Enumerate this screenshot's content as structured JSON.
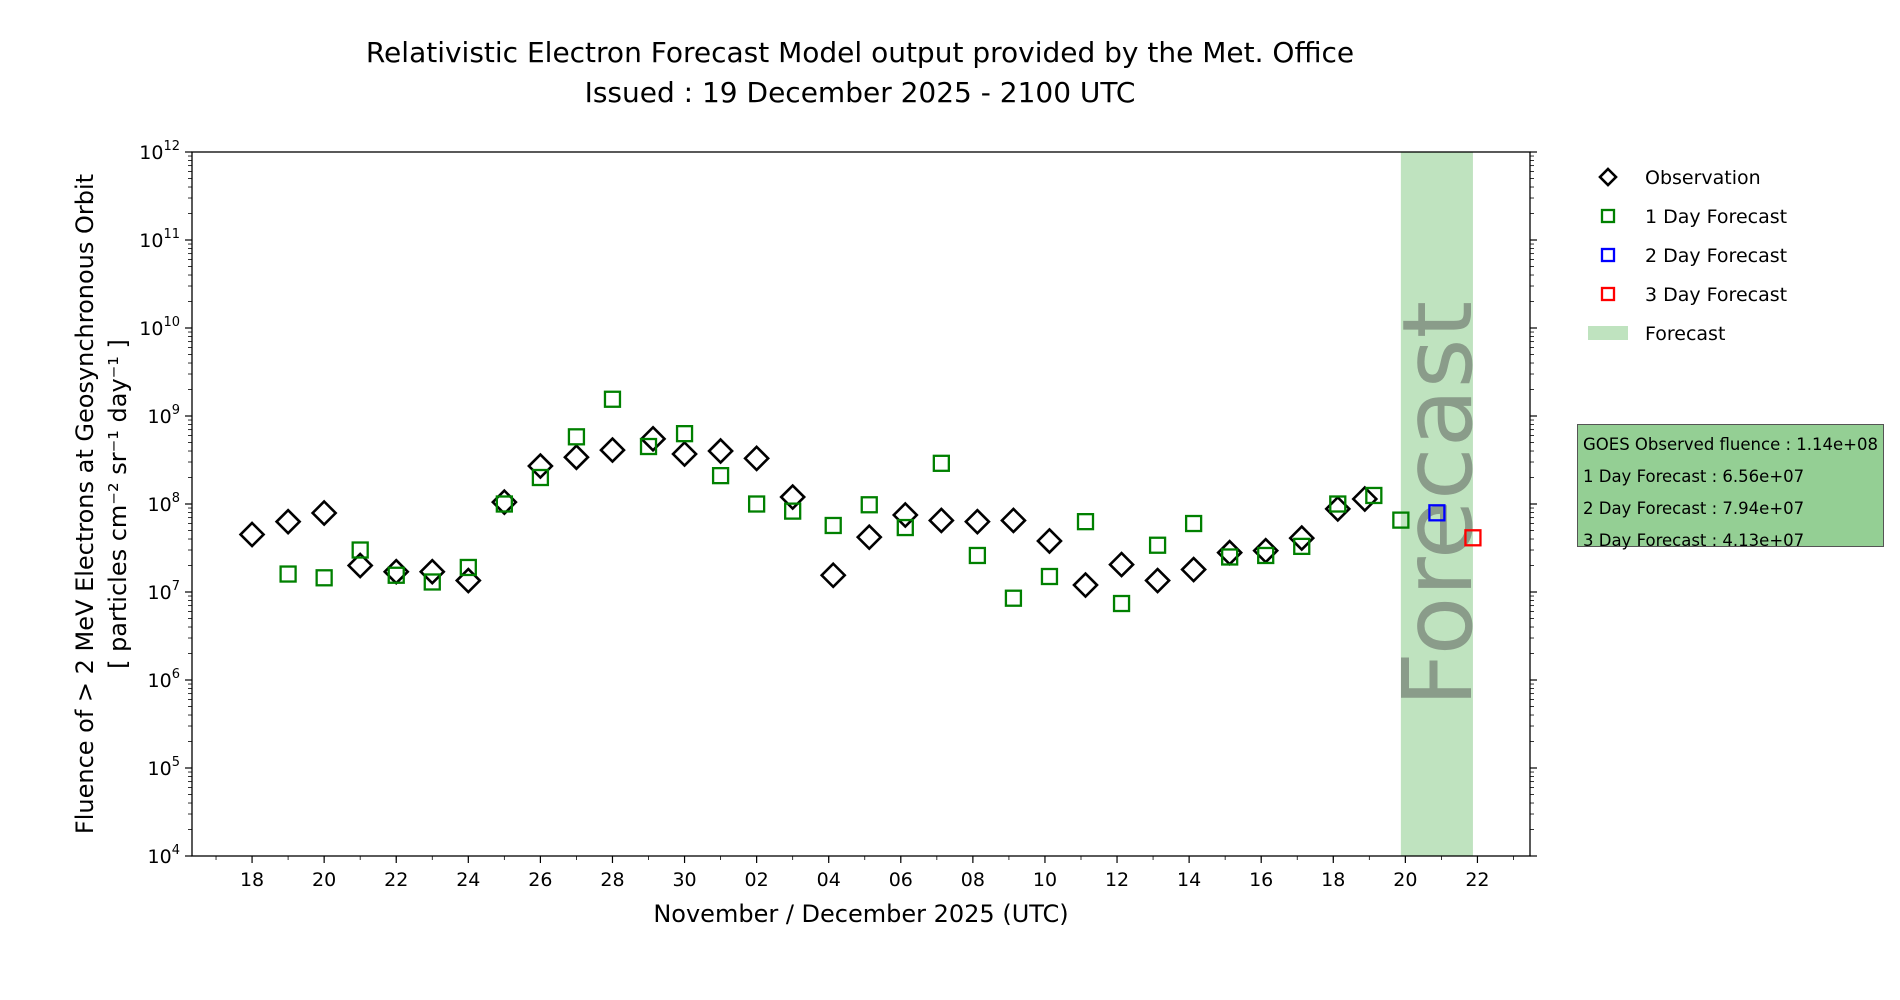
{
  "chart_data": {
    "type": "scatter",
    "title": "Relativistic Electron Forecast Model output provided by the Met. Office",
    "subtitle": "Issued : 19 December 2025 - 2100 UTC",
    "xlabel": "November / December 2025 (UTC)",
    "ylabel_line1": "Fluence of > 2 MeV Electrons at Geosynchronous Orbit",
    "ylabel_line2": "[ particles cm⁻² sr⁻¹ day⁻¹ ]",
    "yscale": "log",
    "ylim_exp": [
      4,
      12
    ],
    "ytick_exponents": [
      4,
      5,
      6,
      7,
      8,
      9,
      10,
      11,
      12
    ],
    "x_range_days": [
      "2025-11-16T08:00",
      "2025-12-23T11:00"
    ],
    "xtick_labels": [
      {
        "date": "2025-11-18",
        "label": "18"
      },
      {
        "date": "2025-11-20",
        "label": "20"
      },
      {
        "date": "2025-11-22",
        "label": "22"
      },
      {
        "date": "2025-11-24",
        "label": "24"
      },
      {
        "date": "2025-11-26",
        "label": "26"
      },
      {
        "date": "2025-11-28",
        "label": "28"
      },
      {
        "date": "2025-11-30",
        "label": "30"
      },
      {
        "date": "2025-12-02",
        "label": "02"
      },
      {
        "date": "2025-12-04",
        "label": "04"
      },
      {
        "date": "2025-12-06",
        "label": "06"
      },
      {
        "date": "2025-12-08",
        "label": "08"
      },
      {
        "date": "2025-12-10",
        "label": "10"
      },
      {
        "date": "2025-12-12",
        "label": "12"
      },
      {
        "date": "2025-12-14",
        "label": "14"
      },
      {
        "date": "2025-12-16",
        "label": "16"
      },
      {
        "date": "2025-12-18",
        "label": "18"
      },
      {
        "date": "2025-12-20",
        "label": "20"
      },
      {
        "date": "2025-12-22",
        "label": "22"
      }
    ],
    "forecast_band": {
      "start": "2025-12-19T21:00",
      "end": "2025-12-21T21:00",
      "color": "#bfe3bf",
      "label": "Forecast",
      "label_color": "#8a9c8a"
    },
    "series": [
      {
        "name": "Observation",
        "marker": "diamond",
        "color": "#000000",
        "points": [
          {
            "x": "2025-11-18T00:00",
            "y": 45000000.0
          },
          {
            "x": "2025-11-19T00:00",
            "y": 63000000.0
          },
          {
            "x": "2025-11-20T00:00",
            "y": 79000000.0
          },
          {
            "x": "2025-11-21T00:00",
            "y": 20000000.0
          },
          {
            "x": "2025-11-22T00:00",
            "y": 17000000.0
          },
          {
            "x": "2025-11-23T00:00",
            "y": 17000000.0
          },
          {
            "x": "2025-11-24T00:00",
            "y": 13500000.0
          },
          {
            "x": "2025-11-25T00:00",
            "y": 105000000.0
          },
          {
            "x": "2025-11-26T00:00",
            "y": 270000000.0
          },
          {
            "x": "2025-11-27T00:00",
            "y": 340000000.0
          },
          {
            "x": "2025-11-28T00:00",
            "y": 410000000.0
          },
          {
            "x": "2025-11-29T03:00",
            "y": 550000000.0
          },
          {
            "x": "2025-11-30T00:00",
            "y": 370000000.0
          },
          {
            "x": "2025-12-01T00:00",
            "y": 400000000.0
          },
          {
            "x": "2025-12-02T00:00",
            "y": 330000000.0
          },
          {
            "x": "2025-12-03T00:00",
            "y": 120000000.0
          },
          {
            "x": "2025-12-04T03:00",
            "y": 15500000.0
          },
          {
            "x": "2025-12-05T03:00",
            "y": 42000000.0
          },
          {
            "x": "2025-12-06T03:00",
            "y": 75000000.0
          },
          {
            "x": "2025-12-07T03:00",
            "y": 65000000.0
          },
          {
            "x": "2025-12-08T03:00",
            "y": 63000000.0
          },
          {
            "x": "2025-12-09T03:00",
            "y": 65000000.0
          },
          {
            "x": "2025-12-10T03:00",
            "y": 38000000.0
          },
          {
            "x": "2025-12-11T03:00",
            "y": 12000000.0
          },
          {
            "x": "2025-12-12T03:00",
            "y": 20500000.0
          },
          {
            "x": "2025-12-13T03:00",
            "y": 13500000.0
          },
          {
            "x": "2025-12-14T03:00",
            "y": 18000000.0
          },
          {
            "x": "2025-12-15T03:00",
            "y": 28000000.0
          },
          {
            "x": "2025-12-16T03:00",
            "y": 29500000.0
          },
          {
            "x": "2025-12-17T03:00",
            "y": 41000000.0
          },
          {
            "x": "2025-12-18T03:00",
            "y": 88000000.0
          },
          {
            "x": "2025-12-18T21:00",
            "y": 114000000.0
          }
        ]
      },
      {
        "name": "1 Day Forecast",
        "marker": "square",
        "color": "#008000",
        "points": [
          {
            "x": "2025-11-19T00:00",
            "y": 16000000.0
          },
          {
            "x": "2025-11-20T00:00",
            "y": 14500000.0
          },
          {
            "x": "2025-11-21T00:00",
            "y": 30000000.0
          },
          {
            "x": "2025-11-22T00:00",
            "y": 15500000.0
          },
          {
            "x": "2025-11-23T00:00",
            "y": 13000000.0
          },
          {
            "x": "2025-11-24T00:00",
            "y": 19000000.0
          },
          {
            "x": "2025-11-25T00:00",
            "y": 100000000.0
          },
          {
            "x": "2025-11-26T00:00",
            "y": 200000000.0
          },
          {
            "x": "2025-11-27T00:00",
            "y": 580000000.0
          },
          {
            "x": "2025-11-28T00:00",
            "y": 1550000000.0
          },
          {
            "x": "2025-11-29T00:00",
            "y": 450000000.0
          },
          {
            "x": "2025-11-30T00:00",
            "y": 630000000.0
          },
          {
            "x": "2025-12-01T00:00",
            "y": 210000000.0
          },
          {
            "x": "2025-12-02T00:00",
            "y": 100000000.0
          },
          {
            "x": "2025-12-03T00:00",
            "y": 83000000.0
          },
          {
            "x": "2025-12-04T03:00",
            "y": 57000000.0
          },
          {
            "x": "2025-12-05T03:00",
            "y": 98000000.0
          },
          {
            "x": "2025-12-06T03:00",
            "y": 54000000.0
          },
          {
            "x": "2025-12-07T03:00",
            "y": 290000000.0
          },
          {
            "x": "2025-12-08T03:00",
            "y": 26000000.0
          },
          {
            "x": "2025-12-09T03:00",
            "y": 8500000.0
          },
          {
            "x": "2025-12-10T03:00",
            "y": 15000000.0
          },
          {
            "x": "2025-12-11T03:00",
            "y": 63000000.0
          },
          {
            "x": "2025-12-12T03:00",
            "y": 7400000.0
          },
          {
            "x": "2025-12-13T03:00",
            "y": 34000000.0
          },
          {
            "x": "2025-12-14T03:00",
            "y": 60000000.0
          },
          {
            "x": "2025-12-15T03:00",
            "y": 25000000.0
          },
          {
            "x": "2025-12-16T03:00",
            "y": 26000000.0
          },
          {
            "x": "2025-12-17T03:00",
            "y": 33000000.0
          },
          {
            "x": "2025-12-18T03:00",
            "y": 100000000.0
          },
          {
            "x": "2025-12-19T03:00",
            "y": 125000000.0
          },
          {
            "x": "2025-12-19T21:00",
            "y": 65600000.0
          }
        ]
      },
      {
        "name": "2 Day Forecast",
        "marker": "square",
        "color": "#0000ff",
        "points": [
          {
            "x": "2025-12-20T21:00",
            "y": 79400000.0
          }
        ]
      },
      {
        "name": "3 Day Forecast",
        "marker": "square",
        "color": "#ff0000",
        "points": [
          {
            "x": "2025-12-21T21:00",
            "y": 41300000.0
          }
        ]
      }
    ],
    "legend": {
      "position": "right",
      "entries": [
        "Observation",
        "1 Day Forecast",
        "2 Day Forecast",
        "3 Day Forecast",
        "Forecast"
      ]
    }
  },
  "info_box": {
    "observed": "GOES Observed fluence : 1.14e+08",
    "day1": "1 Day Forecast : 6.56e+07",
    "day2": "2 Day Forecast : 7.94e+07",
    "day3": "3 Day Forecast : 4.13e+07",
    "background": "#94cf94"
  }
}
